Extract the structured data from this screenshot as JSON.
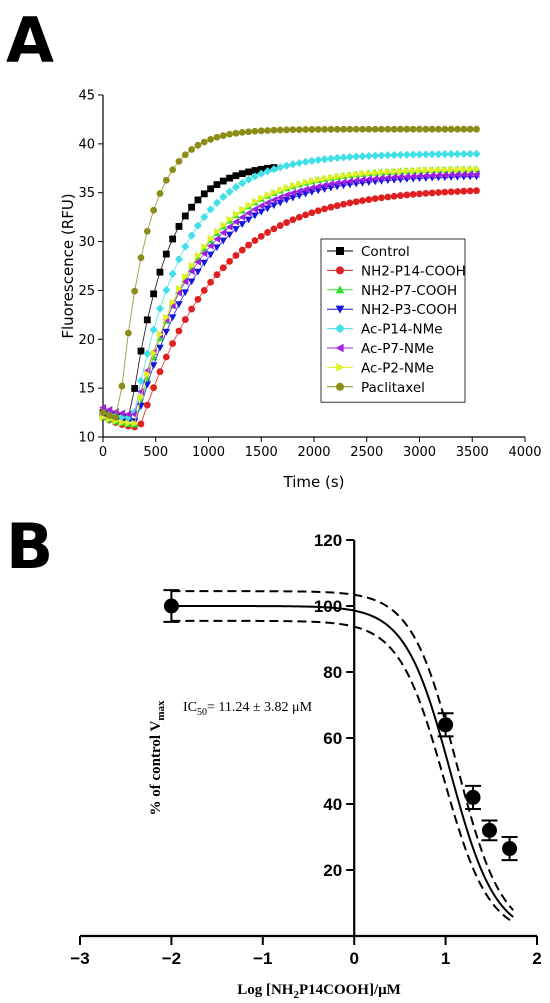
{
  "panel_a_label": "A",
  "panel_b_label": "B",
  "chart_data": [
    {
      "type": "scatter",
      "panel": "A",
      "xlabel": "Time (s)",
      "ylabel": "Fluorescence (RFU)",
      "xlim": [
        0,
        4000
      ],
      "ylim": [
        10,
        45
      ],
      "xticks": [
        0,
        500,
        1000,
        1500,
        2000,
        2500,
        3000,
        3500,
        4000
      ],
      "yticks": [
        10,
        15,
        20,
        25,
        30,
        35,
        40,
        45
      ],
      "legend_position": "right",
      "series": [
        {
          "name": "Control",
          "color": "#000000",
          "marker": "square",
          "y0": 12.5,
          "ymin": 12.0,
          "plateau": 38.0,
          "t0": 260,
          "tau": 330,
          "x_start": 0,
          "x_end": 1650,
          "step": 60
        },
        {
          "name": "NH2-P14-COOH",
          "color": "#e02020",
          "marker": "circle",
          "y0": 12.0,
          "ymin": 11.0,
          "plateau": 35.5,
          "t0": 350,
          "tau": 720,
          "x_start": 0,
          "x_end": 3560,
          "step": 60
        },
        {
          "name": "NH2-P7-COOH",
          "color": "#2ee02e",
          "marker": "triangle-up",
          "y0": 12.0,
          "ymin": 11.3,
          "plateau": 37.5,
          "t0": 310,
          "tau": 560,
          "x_start": 0,
          "x_end": 3560,
          "step": 60
        },
        {
          "name": "NH2-P3-COOH",
          "color": "#1515e0",
          "marker": "triangle-down",
          "y0": 12.0,
          "ymin": 11.6,
          "plateau": 36.8,
          "t0": 320,
          "tau": 620,
          "x_start": 0,
          "x_end": 3560,
          "step": 60
        },
        {
          "name": "Ac-P14-NMe",
          "color": "#40e0e8",
          "marker": "diamond",
          "y0": 12.5,
          "ymin": 12.0,
          "plateau": 39.0,
          "t0": 290,
          "tau": 470,
          "x_start": 0,
          "x_end": 3560,
          "step": 60
        },
        {
          "name": "Ac-P7-NMe",
          "color": "#a020e0",
          "marker": "triangle-left",
          "y0": 13.0,
          "ymin": 12.3,
          "plateau": 37.0,
          "t0": 300,
          "tau": 600,
          "x_start": 0,
          "x_end": 3560,
          "step": 60
        },
        {
          "name": "Ac-P2-NMe",
          "color": "#e0f020",
          "marker": "triangle-right",
          "y0": 12.0,
          "ymin": 11.4,
          "plateau": 37.5,
          "t0": 300,
          "tau": 560,
          "x_start": 0,
          "x_end": 3560,
          "step": 60
        },
        {
          "name": "Paclitaxel",
          "color": "#8c8c18",
          "marker": "circle",
          "y0": 12.5,
          "ymin": 12.0,
          "plateau": 41.5,
          "t0": 150,
          "tau": 260,
          "x_start": 0,
          "x_end": 3560,
          "step": 60
        }
      ]
    },
    {
      "type": "scatter",
      "panel": "B",
      "ylabel": "% of control V",
      "ylabel_subscript": "max",
      "xlabel_parts": [
        "Log [NH",
        "2",
        "P14COOH]/μM"
      ],
      "xlim": [
        -3,
        2
      ],
      "ylim": [
        0,
        120
      ],
      "xticks": [
        -3,
        -2,
        -1,
        0,
        1,
        2
      ],
      "xtick_labels": [
        "−3",
        "−2",
        "−1",
        "0",
        "1",
        "2"
      ],
      "yticks": [
        20,
        40,
        60,
        80,
        100,
        120
      ],
      "annotation_parts": [
        "IC",
        "50",
        "= 11.24 ± 3.82 μM"
      ],
      "points": [
        {
          "x": -2.0,
          "y": 100.0,
          "err": 4.8
        },
        {
          "x": 1.0,
          "y": 64.0,
          "err": 3.5
        },
        {
          "x": 1.3,
          "y": 42.0,
          "err": 3.5
        },
        {
          "x": 1.48,
          "y": 32.0,
          "err": 3.0
        },
        {
          "x": 1.7,
          "y": 26.5,
          "err": 3.5
        }
      ],
      "fit": {
        "top": 100,
        "bottom": 0,
        "log_ic50": 1.05,
        "hill": 0.8
      },
      "ci": {
        "top_upper": 104.5,
        "top_lower": 95.5,
        "shift": 0.07
      }
    }
  ]
}
